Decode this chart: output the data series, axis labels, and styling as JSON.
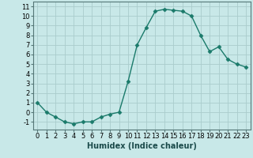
{
  "x": [
    0,
    1,
    2,
    3,
    4,
    5,
    6,
    7,
    8,
    9,
    10,
    11,
    12,
    13,
    14,
    15,
    16,
    17,
    18,
    19,
    20,
    21,
    22,
    23
  ],
  "y": [
    1,
    0,
    -0.5,
    -1,
    -1.2,
    -1,
    -1,
    -0.5,
    -0.2,
    0,
    3.2,
    7,
    8.8,
    10.5,
    10.7,
    10.6,
    10.5,
    10,
    8,
    6.3,
    6.8,
    5.5,
    5,
    4.7
  ],
  "line_color": "#1a7a6a",
  "marker": "D",
  "marker_size": 2.5,
  "bg_color": "#c8e8e8",
  "grid_color": "#aacccc",
  "xlabel": "Humidex (Indice chaleur)",
  "xlabel_fontsize": 7,
  "ylim": [
    -1.8,
    11.5
  ],
  "xlim": [
    -0.5,
    23.5
  ],
  "yticks": [
    -1,
    0,
    1,
    2,
    3,
    4,
    5,
    6,
    7,
    8,
    9,
    10,
    11
  ],
  "xticks": [
    0,
    1,
    2,
    3,
    4,
    5,
    6,
    7,
    8,
    9,
    10,
    11,
    12,
    13,
    14,
    15,
    16,
    17,
    18,
    19,
    20,
    21,
    22,
    23
  ],
  "tick_fontsize": 6,
  "spine_color": "#557777"
}
